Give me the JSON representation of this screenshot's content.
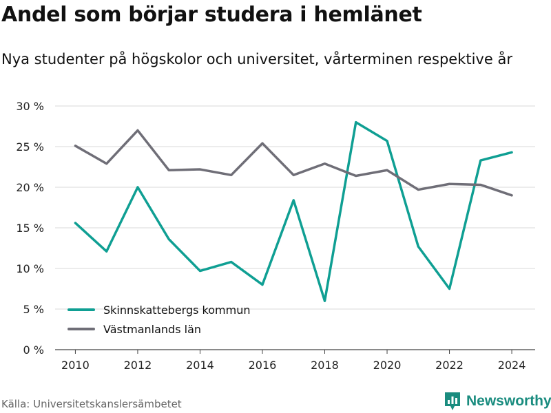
{
  "title": "Andel som börjar studera i hemlänet",
  "subtitle": "Nya studenter på högskolor och universitet, vårterminen respektive år",
  "source": "Källa: Universitetskanslersämbetet",
  "brand": "Newsworthy",
  "colors": {
    "series1": "#0f9f93",
    "series2": "#6f6e77",
    "grid": "#d9d9d9",
    "brand": "#1a8c7f"
  },
  "chart_data": {
    "type": "line",
    "title": "Andel som börjar studera i hemlänet",
    "subtitle": "Nya studenter på högskolor och universitet, vårterminen respektive år",
    "xlabel": "",
    "ylabel": "",
    "x": [
      2010,
      2011,
      2012,
      2013,
      2014,
      2015,
      2016,
      2017,
      2018,
      2019,
      2020,
      2021,
      2022,
      2023,
      2024
    ],
    "xticks": [
      "2010",
      "2012",
      "2014",
      "2016",
      "2018",
      "2020",
      "2022",
      "2024"
    ],
    "yticks": [
      "0 %",
      "5 %",
      "10 %",
      "15 %",
      "20 %",
      "25 %",
      "30 %"
    ],
    "ylim": [
      0,
      30
    ],
    "grid": true,
    "legend_position": "bottom-left",
    "series": [
      {
        "name": "Skinnskattebergs kommun",
        "color": "#0f9f93",
        "values": [
          15.6,
          12.1,
          20.0,
          13.6,
          9.7,
          10.8,
          8.0,
          18.4,
          6.0,
          28.0,
          25.7,
          12.7,
          7.5,
          23.3,
          24.3
        ]
      },
      {
        "name": "Västmanlands län",
        "color": "#6f6e77",
        "values": [
          25.1,
          22.9,
          27.0,
          22.1,
          22.2,
          21.5,
          25.4,
          21.5,
          22.9,
          21.4,
          22.1,
          19.7,
          20.4,
          20.3,
          19.0
        ]
      }
    ]
  }
}
